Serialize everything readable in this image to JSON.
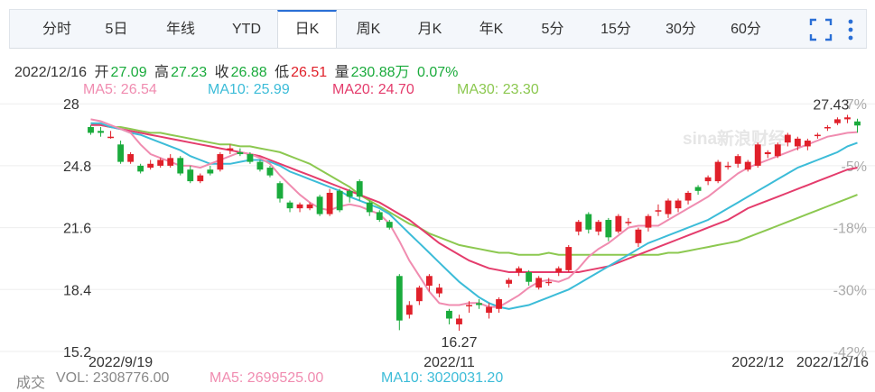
{
  "tabs": [
    {
      "label": "分时"
    },
    {
      "label": "5日"
    },
    {
      "label": "年线"
    },
    {
      "label": "YTD"
    },
    {
      "label": "日K"
    },
    {
      "label": "周K"
    },
    {
      "label": "月K"
    },
    {
      "label": "年K"
    },
    {
      "label": "5分"
    },
    {
      "label": "15分"
    },
    {
      "label": "30分"
    },
    {
      "label": "60分"
    }
  ],
  "active_tab": "日K",
  "info": {
    "date": "2022/12/16",
    "open_label": "开",
    "open": "27.09",
    "high_label": "高",
    "high": "27.23",
    "close_label": "收",
    "close": "26.88",
    "low_label": "低",
    "low": "26.51",
    "vol_label": "量",
    "vol": "230.88万",
    "change": "0.07%"
  },
  "ma": {
    "ma5": "MA5: 26.54",
    "ma10": "MA10: 25.99",
    "ma20": "MA20: 24.70",
    "ma30": "MA30: 23.30"
  },
  "volume_bar": {
    "label": "成交",
    "vol": "VOL: 2308776.00",
    "ma5": "MA5: 2699525.00",
    "ma10": "MA10: 3020031.20"
  },
  "colors": {
    "up": "#e0202a",
    "down": "#1aab3c",
    "ma5": "#f08cb0",
    "ma10": "#3cbcd8",
    "ma20": "#e43c6c",
    "ma30": "#8cc850",
    "accent": "#2a6fd6"
  },
  "watermark": "sina新浪财经",
  "icons": {
    "fullscreen": "fullscreen-icon",
    "more": "more-vertical-icon"
  },
  "chart_data": {
    "type": "candlestick",
    "y_ticks": [
      "28",
      "24.8",
      "21.6",
      "18.4",
      "15.2"
    ],
    "pct_ticks": [
      "7%",
      "-5%",
      "-18%",
      "-30%",
      "-42%"
    ],
    "x_ticks": [
      "2022/9/19",
      "2022/11",
      "2022/12",
      "2022/12/16"
    ],
    "ylim": [
      15.2,
      28.4
    ],
    "max_annotation": "27.43",
    "min_annotation": "16.27",
    "candles": [
      [
        26.8,
        26.5,
        26.9,
        26.4
      ],
      [
        26.6,
        26.5,
        26.8,
        26.3
      ],
      [
        26.3,
        26.3,
        26.6,
        26.2
      ],
      [
        25.9,
        25.0,
        26.1,
        24.9
      ],
      [
        25.0,
        25.4,
        25.5,
        24.9
      ],
      [
        24.8,
        24.5,
        24.9,
        24.4
      ],
      [
        24.7,
        24.9,
        25.1,
        24.6
      ],
      [
        24.8,
        25.1,
        25.2,
        24.7
      ],
      [
        24.8,
        25.2,
        25.4,
        24.7
      ],
      [
        25.2,
        24.4,
        25.3,
        24.3
      ],
      [
        24.6,
        24.0,
        24.8,
        23.9
      ],
      [
        24.0,
        24.3,
        24.4,
        23.9
      ],
      [
        24.6,
        24.4,
        24.8,
        24.3
      ],
      [
        24.6,
        25.4,
        25.5,
        24.5
      ],
      [
        25.6,
        25.7,
        25.9,
        25.4
      ],
      [
        25.5,
        25.4,
        25.7,
        25.3
      ],
      [
        25.4,
        25.0,
        25.5,
        24.9
      ],
      [
        25.0,
        24.6,
        25.1,
        24.5
      ],
      [
        24.7,
        24.3,
        24.8,
        24.2
      ],
      [
        23.9,
        23.1,
        24.0,
        22.9
      ],
      [
        22.9,
        22.6,
        23.0,
        22.4
      ],
      [
        22.6,
        22.8,
        22.9,
        22.4
      ],
      [
        22.6,
        22.8,
        22.9,
        22.5
      ],
      [
        23.2,
        22.3,
        23.3,
        22.2
      ],
      [
        22.3,
        23.4,
        23.6,
        22.2
      ],
      [
        23.5,
        22.5,
        23.6,
        22.4
      ],
      [
        23.5,
        23.2,
        23.6,
        22.9
      ],
      [
        24.0,
        23.2,
        24.1,
        23.0
      ],
      [
        22.9,
        22.4,
        23.0,
        22.2
      ],
      [
        22.4,
        22.0,
        22.5,
        21.9
      ],
      [
        21.9,
        21.6,
        22.0,
        21.5
      ],
      [
        19.1,
        16.8,
        19.2,
        16.3
      ],
      [
        17.1,
        17.6,
        17.8,
        16.9
      ],
      [
        17.8,
        18.5,
        18.6,
        17.6
      ],
      [
        18.6,
        19.1,
        19.2,
        18.3
      ],
      [
        18.2,
        18.5,
        18.7,
        18.0
      ],
      [
        17.3,
        16.9,
        17.4,
        16.6
      ],
      [
        16.6,
        16.9,
        17.1,
        16.27
      ],
      [
        17.6,
        17.6,
        17.8,
        17.2
      ],
      [
        17.7,
        17.6,
        17.9,
        17.4
      ],
      [
        17.2,
        17.5,
        17.7,
        16.9
      ],
      [
        17.4,
        17.9,
        18.0,
        17.2
      ],
      [
        18.7,
        18.9,
        19.0,
        18.5
      ],
      [
        19.3,
        19.5,
        19.6,
        19.1
      ],
      [
        19.3,
        18.8,
        19.4,
        18.6
      ],
      [
        18.5,
        19.0,
        19.1,
        18.4
      ],
      [
        18.8,
        18.8,
        19.0,
        18.6
      ],
      [
        19.3,
        19.5,
        19.6,
        19.1
      ],
      [
        19.4,
        20.6,
        20.7,
        19.3
      ],
      [
        21.4,
        21.9,
        22.0,
        21.2
      ],
      [
        22.3,
        21.5,
        22.4,
        21.3
      ],
      [
        21.4,
        21.9,
        22.0,
        21.2
      ],
      [
        22.0,
        21.1,
        22.1,
        20.9
      ],
      [
        21.4,
        22.2,
        22.3,
        21.3
      ],
      [
        21.9,
        21.9,
        22.1,
        21.7
      ],
      [
        20.8,
        21.5,
        21.6,
        20.6
      ],
      [
        21.6,
        22.2,
        22.3,
        21.4
      ],
      [
        22.5,
        22.5,
        22.8,
        22.2
      ],
      [
        22.3,
        23.0,
        23.1,
        22.1
      ],
      [
        22.6,
        23.0,
        23.1,
        22.4
      ],
      [
        23.0,
        23.4,
        23.5,
        22.8
      ],
      [
        23.7,
        23.5,
        23.8,
        23.3
      ],
      [
        24.0,
        24.2,
        24.3,
        23.8
      ],
      [
        24.0,
        25.0,
        25.1,
        23.9
      ],
      [
        24.8,
        24.8,
        25.0,
        24.6
      ],
      [
        24.9,
        25.3,
        25.4,
        24.7
      ],
      [
        24.6,
        25.0,
        25.1,
        24.5
      ],
      [
        24.8,
        25.9,
        26.0,
        24.7
      ],
      [
        25.4,
        25.5,
        25.6,
        25.2
      ],
      [
        25.3,
        25.9,
        26.0,
        25.2
      ],
      [
        26.0,
        26.4,
        26.5,
        25.8
      ],
      [
        25.8,
        26.2,
        26.3,
        25.6
      ],
      [
        25.8,
        26.1,
        26.2,
        25.6
      ],
      [
        26.4,
        26.4,
        26.5,
        26.2
      ],
      [
        26.8,
        26.8,
        26.9,
        26.6
      ],
      [
        27.0,
        27.2,
        27.3,
        26.9
      ],
      [
        27.2,
        27.3,
        27.43,
        27.0
      ],
      [
        27.09,
        26.88,
        27.23,
        26.51
      ]
    ],
    "ma5": [
      27.2,
      27.1,
      26.9,
      26.7,
      26.5,
      25.9,
      25.4,
      25.2,
      25.0,
      24.8,
      24.8,
      24.7,
      24.9,
      25.1,
      25.3,
      25.5,
      25.4,
      25.2,
      24.9,
      24.3,
      23.8,
      23.3,
      22.9,
      22.6,
      22.5,
      22.7,
      22.8,
      22.7,
      22.5,
      22.3,
      21.8,
      20.9,
      19.9,
      19.1,
      18.3,
      17.7,
      17.6,
      17.6,
      17.7,
      17.7,
      17.5,
      17.5,
      17.8,
      18.1,
      18.5,
      18.8,
      18.9,
      18.8,
      19.0,
      19.5,
      20.1,
      20.5,
      20.8,
      21.2,
      21.6,
      21.7,
      21.7,
      21.7,
      22.0,
      22.3,
      22.6,
      22.9,
      23.2,
      23.6,
      24.0,
      24.4,
      24.7,
      24.9,
      25.1,
      25.3,
      25.5,
      25.7,
      25.9,
      26.1,
      26.3,
      26.4,
      26.5,
      26.54
    ],
    "ma10": [
      27.0,
      27.0,
      26.8,
      26.7,
      26.5,
      26.4,
      26.2,
      26.0,
      25.8,
      25.6,
      25.3,
      25.1,
      24.9,
      24.9,
      24.9,
      25.0,
      25.1,
      25.1,
      25.0,
      24.8,
      24.5,
      24.3,
      24.1,
      23.9,
      23.7,
      23.5,
      23.2,
      23.0,
      22.8,
      22.6,
      22.3,
      21.8,
      21.3,
      20.8,
      20.3,
      19.8,
      19.3,
      18.8,
      18.4,
      18.0,
      17.7,
      17.5,
      17.4,
      17.5,
      17.6,
      17.8,
      18.0,
      18.2,
      18.4,
      18.7,
      19.0,
      19.3,
      19.6,
      19.9,
      20.2,
      20.5,
      20.8,
      21.0,
      21.2,
      21.4,
      21.6,
      21.8,
      22.0,
      22.3,
      22.6,
      22.9,
      23.2,
      23.5,
      23.8,
      24.1,
      24.4,
      24.7,
      24.9,
      25.1,
      25.3,
      25.5,
      25.8,
      25.99
    ],
    "ma20": [
      26.9,
      26.9,
      26.8,
      26.7,
      26.6,
      26.5,
      26.4,
      26.3,
      26.2,
      26.1,
      26.0,
      25.9,
      25.8,
      25.7,
      25.6,
      25.5,
      25.4,
      25.3,
      25.1,
      24.9,
      24.7,
      24.5,
      24.3,
      24.1,
      23.9,
      23.7,
      23.5,
      23.3,
      23.1,
      22.9,
      22.6,
      22.3,
      22.0,
      21.6,
      21.2,
      20.8,
      20.5,
      20.2,
      19.9,
      19.7,
      19.5,
      19.4,
      19.3,
      19.3,
      19.3,
      19.3,
      19.3,
      19.3,
      19.3,
      19.3,
      19.4,
      19.5,
      19.6,
      19.8,
      20.0,
      20.2,
      20.4,
      20.6,
      20.8,
      21.0,
      21.2,
      21.4,
      21.6,
      21.8,
      22.0,
      22.3,
      22.6,
      22.8,
      23.0,
      23.2,
      23.4,
      23.6,
      23.8,
      24.0,
      24.2,
      24.4,
      24.6,
      24.7
    ],
    "ma30": [
      27.0,
      26.9,
      26.8,
      26.8,
      26.7,
      26.6,
      26.5,
      26.5,
      26.4,
      26.3,
      26.2,
      26.1,
      26.0,
      25.9,
      25.9,
      25.8,
      25.8,
      25.7,
      25.6,
      25.5,
      25.3,
      25.1,
      24.9,
      24.6,
      24.3,
      24.0,
      23.7,
      23.3,
      23.0,
      22.7,
      22.4,
      22.1,
      21.8,
      21.6,
      21.3,
      21.1,
      20.9,
      20.7,
      20.6,
      20.5,
      20.4,
      20.3,
      20.3,
      20.2,
      20.2,
      20.2,
      20.3,
      20.2,
      20.2,
      20.2,
      20.2,
      20.2,
      20.2,
      20.2,
      20.2,
      20.2,
      20.2,
      20.2,
      20.3,
      20.3,
      20.4,
      20.5,
      20.6,
      20.7,
      20.8,
      20.9,
      21.1,
      21.3,
      21.5,
      21.7,
      21.9,
      22.1,
      22.3,
      22.5,
      22.7,
      22.9,
      23.1,
      23.3
    ]
  }
}
